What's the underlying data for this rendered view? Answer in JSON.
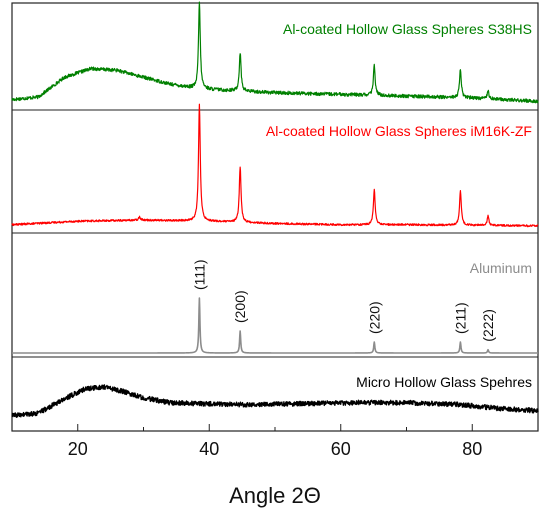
{
  "chart_data": {
    "type": "line",
    "title": "",
    "xlabel": "Angle 2Θ",
    "ylabel": "",
    "xlim": [
      10,
      90
    ],
    "xticks": [
      20,
      40,
      60,
      80
    ],
    "xtick_labels": [
      "20",
      "40",
      "60",
      "80"
    ],
    "grid": false,
    "panels": 4,
    "series": [
      {
        "name": "Al-coated Hollow Glass Spheres S38HS",
        "color": "#008000",
        "background_points": [
          [
            10,
            0.04
          ],
          [
            14,
            0.07
          ],
          [
            18,
            0.3
          ],
          [
            22,
            0.4
          ],
          [
            26,
            0.38
          ],
          [
            30,
            0.3
          ],
          [
            34,
            0.22
          ],
          [
            38,
            0.17
          ],
          [
            42,
            0.15
          ],
          [
            50,
            0.12
          ],
          [
            60,
            0.1
          ],
          [
            70,
            0.08
          ],
          [
            80,
            0.06
          ],
          [
            90,
            0.02
          ]
        ],
        "peaks": [
          [
            38.5,
            1.0
          ],
          [
            44.7,
            0.45
          ],
          [
            65.1,
            0.35
          ],
          [
            78.2,
            0.33
          ],
          [
            82.4,
            0.1
          ]
        ],
        "noise": 0.02
      },
      {
        "name": "Al-coated Hollow Glass Spheres iM16K-ZF",
        "color": "#ff0000",
        "background_points": [
          [
            10,
            0.02
          ],
          [
            20,
            0.05
          ],
          [
            30,
            0.06
          ],
          [
            40,
            0.05
          ],
          [
            50,
            0.03
          ],
          [
            60,
            0.02
          ],
          [
            70,
            0.02
          ],
          [
            80,
            0.015
          ],
          [
            90,
            0.01
          ]
        ],
        "peaks": [
          [
            29.4,
            0.03
          ],
          [
            38.5,
            1.0
          ],
          [
            44.7,
            0.48
          ],
          [
            65.1,
            0.3
          ],
          [
            78.2,
            0.3
          ],
          [
            82.4,
            0.08
          ]
        ],
        "noise": 0.008
      },
      {
        "name": "Aluminum",
        "color": "#8c8c8c",
        "background_points": [
          [
            10,
            0.0
          ],
          [
            90,
            0.0
          ]
        ],
        "peaks": [
          [
            38.5,
            0.5
          ],
          [
            44.7,
            0.2
          ],
          [
            65.1,
            0.1
          ],
          [
            78.2,
            0.1
          ],
          [
            82.4,
            0.03
          ]
        ],
        "noise": 0.0,
        "peak_labels": [
          {
            "x": 38.5,
            "text": "(111)"
          },
          {
            "x": 44.7,
            "text": "(200)"
          },
          {
            "x": 65.1,
            "text": "(220)"
          },
          {
            "x": 78.2,
            "text": "(211)"
          },
          {
            "x": 82.4,
            "text": "(222)"
          }
        ]
      },
      {
        "name": "Micro Hollow Glass Spehres",
        "color": "#000000",
        "background_points": [
          [
            10,
            0.05
          ],
          [
            14,
            0.1
          ],
          [
            18,
            0.4
          ],
          [
            21,
            0.6
          ],
          [
            24,
            0.65
          ],
          [
            27,
            0.55
          ],
          [
            30,
            0.42
          ],
          [
            34,
            0.32
          ],
          [
            38,
            0.3
          ],
          [
            45,
            0.28
          ],
          [
            55,
            0.3
          ],
          [
            62,
            0.32
          ],
          [
            70,
            0.32
          ],
          [
            78,
            0.28
          ],
          [
            84,
            0.2
          ],
          [
            90,
            0.15
          ]
        ],
        "peaks": [],
        "noise": 0.05
      }
    ]
  }
}
